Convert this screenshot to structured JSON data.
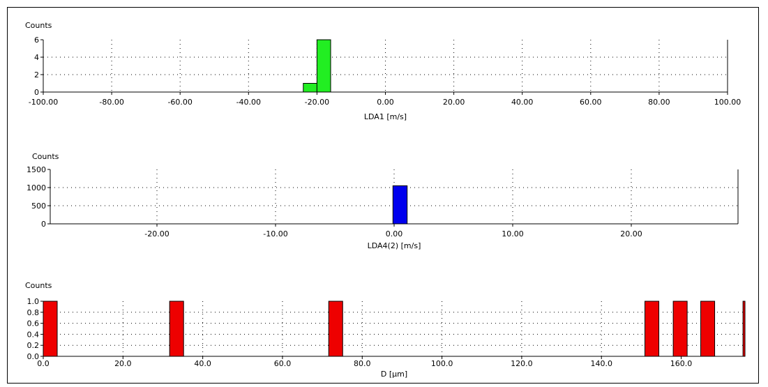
{
  "chart_data": [
    {
      "type": "bar",
      "ylabel": "Counts",
      "xlabel": "LDA1 [m/s]",
      "xlim": [
        -100,
        100
      ],
      "ylim": [
        0,
        6
      ],
      "x_tick_labels": [
        "-100.00",
        "-80.00",
        "-60.00",
        "-40.00",
        "-20.00",
        "0.00",
        "20.00",
        "40.00",
        "60.00",
        "80.00",
        "100.00"
      ],
      "y_tick_labels": [
        "0",
        "2",
        "4",
        "6"
      ],
      "bins": [
        {
          "from": -24,
          "to": -20,
          "value": 1
        },
        {
          "from": -20,
          "to": -16,
          "value": 6
        }
      ],
      "color": "#22ee22",
      "grid": true
    },
    {
      "type": "bar",
      "ylabel": "Counts",
      "xlabel": "LDA4(2) [m/s]",
      "xlim": [
        -29,
        29
      ],
      "ylim": [
        0,
        1500
      ],
      "x_tick_labels": [
        "-20.00",
        "-10.00",
        "0.00",
        "10.00",
        "20.00"
      ],
      "x_tick_values": [
        -20,
        -10,
        0,
        10,
        20
      ],
      "y_tick_labels": [
        "0",
        "500",
        "1000",
        "1500"
      ],
      "bins": [
        {
          "from": -0.1,
          "to": 1.1,
          "value": 1050
        }
      ],
      "color": "#0000ee",
      "grid": true
    },
    {
      "type": "bar",
      "ylabel": "Counts",
      "xlabel": "D [µm]",
      "xlim": [
        0,
        176
      ],
      "ylim": [
        0,
        1.0
      ],
      "x_tick_labels": [
        "0.0",
        "20.0",
        "40.0",
        "60.0",
        "80.0",
        "100.0",
        "120.0",
        "140.0",
        "160.0"
      ],
      "x_tick_values": [
        0,
        20,
        40,
        60,
        80,
        100,
        120,
        140,
        160
      ],
      "y_tick_labels": [
        "0.0",
        "0.2",
        "0.4",
        "0.6",
        "0.8",
        "1.0"
      ],
      "bins": [
        {
          "from": 0.0,
          "to": 3.5,
          "value": 1.0
        },
        {
          "from": 31.7,
          "to": 35.2,
          "value": 1.0
        },
        {
          "from": 71.6,
          "to": 75.1,
          "value": 1.0
        },
        {
          "from": 150.9,
          "to": 154.4,
          "value": 1.0
        },
        {
          "from": 158.0,
          "to": 161.5,
          "value": 1.0
        },
        {
          "from": 164.9,
          "to": 168.4,
          "value": 1.0
        },
        {
          "from": 175.5,
          "to": 179.0,
          "value": 1.0
        }
      ],
      "color": "#ee0000",
      "grid": true
    }
  ]
}
